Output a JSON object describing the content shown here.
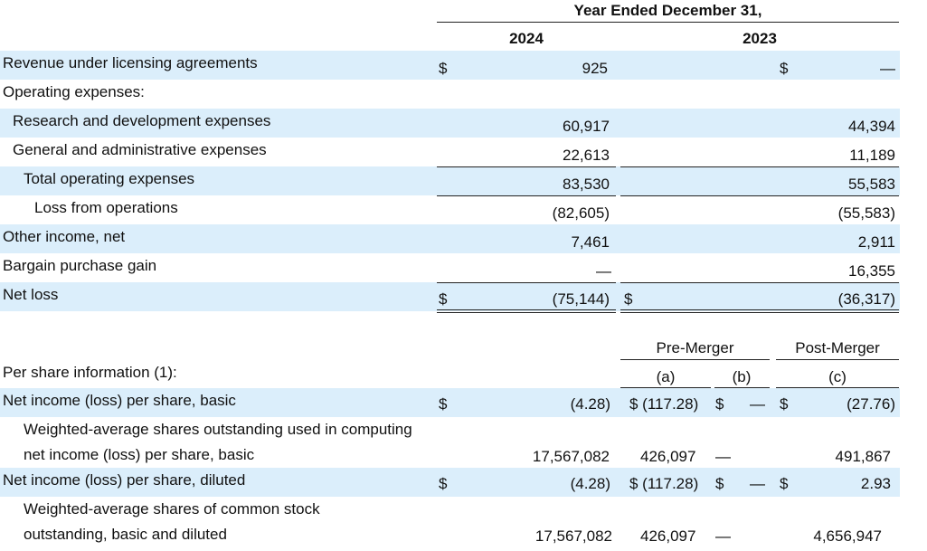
{
  "header": {
    "period": "Year Ended December 31,",
    "year_2024": "2024",
    "year_2023": "2023"
  },
  "income_rows": [
    {
      "label": "Revenue under licensing agreements",
      "cur_a": "$",
      "v2024": "925",
      "cur_b": "",
      "cur_c": "$",
      "v2023": "—"
    },
    {
      "label": "Operating expenses:",
      "cur_a": "",
      "v2024": "",
      "cur_b": "",
      "cur_c": "",
      "v2023": ""
    },
    {
      "label": "Research and development expenses",
      "cur_a": "",
      "v2024": "60,917",
      "cur_b": "",
      "cur_c": "",
      "v2023": "44,394"
    },
    {
      "label": "General and administrative expenses",
      "cur_a": "",
      "v2024": "22,613",
      "cur_b": "",
      "cur_c": "",
      "v2023": "11,189"
    },
    {
      "label": "Total operating expenses",
      "cur_a": "",
      "v2024": "83,530",
      "cur_b": "",
      "cur_c": "",
      "v2023": "55,583"
    },
    {
      "label": "Loss from operations",
      "cur_a": "",
      "v2024": "(82,605)",
      "cur_b": "",
      "cur_c": "",
      "v2023": "(55,583)"
    },
    {
      "label": "Other income, net",
      "cur_a": "",
      "v2024": "7,461",
      "cur_b": "",
      "cur_c": "",
      "v2023": "2,911"
    },
    {
      "label": "Bargain purchase gain",
      "cur_a": "",
      "v2024": "—",
      "cur_b": "",
      "cur_c": "",
      "v2023": "16,355"
    },
    {
      "label": "Net loss",
      "cur_a": "$",
      "v2024": "(75,144)",
      "cur_b": "$",
      "cur_c": "",
      "v2023": "(36,317)"
    }
  ],
  "per_share": {
    "pre_merger": "Pre-Merger",
    "post_merger": "Post-Merger",
    "col_a": "(a)",
    "col_b": "(b)",
    "col_c": "(c)",
    "section_label": "Per share information (1):",
    "rows": [
      {
        "label": "Net income (loss) per share, basic",
        "cur1": "$",
        "v2024": "(4.28)",
        "a": "$ (117.28)",
        "cur_b": "$",
        "b": "—",
        "cur_c": "$",
        "c": "(27.76)"
      },
      {
        "label1": "Weighted-average shares outstanding used in computing",
        "label2": "net income (loss) per share, basic",
        "v2024": "17,567,082",
        "a": "426,097",
        "b": "—",
        "c": "491,867"
      },
      {
        "label": "Net income (loss) per share, diluted",
        "cur1": "$",
        "v2024": "(4.28)",
        "a": "$ (117.28)",
        "cur_b": "$",
        "b": "—",
        "cur_c": "$",
        "c": "2.93"
      },
      {
        "label1": "Weighted-average shares of  common stock",
        "label2": "outstanding, basic and diluted",
        "v2024": "17,567,082",
        "a": "426,097",
        "b": "—",
        "c": "4,656,947"
      }
    ]
  },
  "colors": {
    "band": "#dbeefb",
    "rule": "#222222"
  }
}
